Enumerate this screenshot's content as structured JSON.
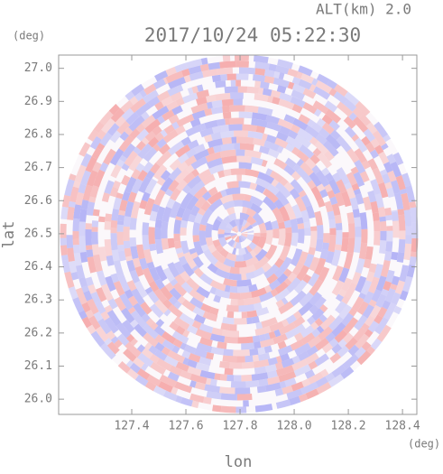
{
  "chart_data": {
    "type": "radar-ppi",
    "title": "2017/10/24 05:22:30",
    "subtitle": "ALT(km) 2.0",
    "x_label": "lon",
    "x_unit": "(deg)",
    "y_label": "lat",
    "y_unit": "(deg)",
    "xlim": [
      127.13,
      128.453
    ],
    "ylim": [
      25.954,
      27.04
    ],
    "xticks": [
      127.4,
      127.6,
      127.8,
      {
        "value": 128,
        "label": "128.0"
      },
      128.2,
      128.4
    ],
    "yticks": [
      {
        "value": 26,
        "label": "26.0"
      },
      26.1,
      26.2,
      26.3,
      26.4,
      26.5,
      26.6,
      26.7,
      26.8,
      26.9,
      {
        "value": 27,
        "label": "27.0"
      }
    ],
    "colors": [
      "#f4a0a0",
      "#a8a8f4"
    ]
  }
}
